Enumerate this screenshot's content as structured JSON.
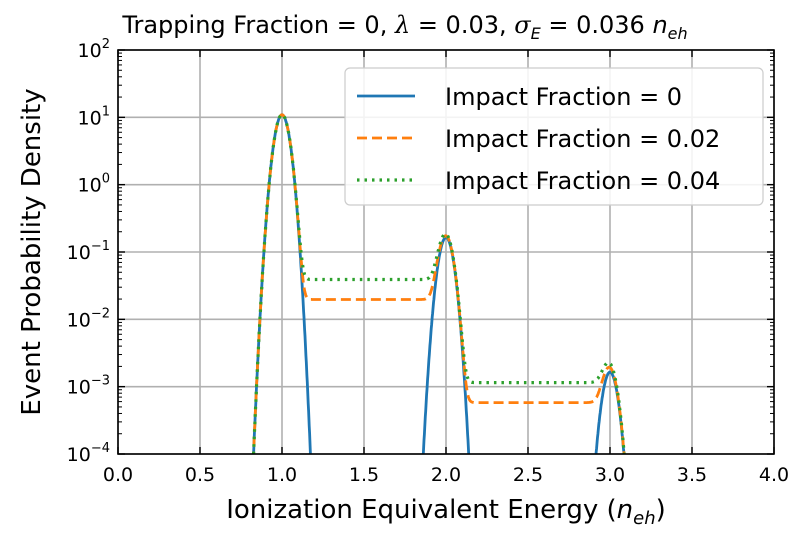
{
  "chart_data": {
    "type": "line",
    "title": {
      "prefix": "Trapping Fraction = 0, ",
      "lambda_symbol": "λ",
      "lambda_text": " = 0.03, ",
      "sigma_symbol": "σ",
      "sigma_sub": "E",
      "sigma_text": " = 0.036 ",
      "unit_main": "n",
      "unit_sub": "eh"
    },
    "xlabel": {
      "text": "Ionization Equivalent Energy (",
      "unit_main": "n",
      "unit_sub": "eh",
      "close": ")"
    },
    "ylabel": "Event Probability Density",
    "xlim": [
      0.0,
      4.0
    ],
    "ylim_log10": [
      -4,
      2
    ],
    "yscale": "log",
    "grid": true,
    "x_ticks": [
      "0.0",
      "0.5",
      "1.0",
      "1.5",
      "2.0",
      "2.5",
      "3.0",
      "3.5",
      "4.0"
    ],
    "y_ticks": [
      {
        "base": "10",
        "exp": "2"
      },
      {
        "base": "10",
        "exp": "1"
      },
      {
        "base": "10",
        "exp": "0"
      },
      {
        "base": "10",
        "exp": "−1"
      },
      {
        "base": "10",
        "exp": "−2"
      },
      {
        "base": "10",
        "exp": "−3"
      },
      {
        "base": "10",
        "exp": "−4"
      }
    ],
    "legend_position": "top-right",
    "model": {
      "sigma": 0.036,
      "peak_centers": [
        1,
        2,
        3
      ],
      "peak_weights": [
        0.985,
        0.0148,
        0.000148
      ]
    },
    "series": [
      {
        "name": "Impact Fraction = 0",
        "color": "#1f77b4",
        "style": "solid",
        "plateau_heights": [
          0,
          0
        ]
      },
      {
        "name": "Impact Fraction = 0.02",
        "color": "#ff7f0e",
        "style": "dashed",
        "plateau_heights": [
          0.0197,
          0.00058
        ]
      },
      {
        "name": "Impact Fraction = 0.04",
        "color": "#2ca02c",
        "style": "dotted",
        "plateau_heights": [
          0.039,
          0.00115
        ]
      }
    ]
  }
}
